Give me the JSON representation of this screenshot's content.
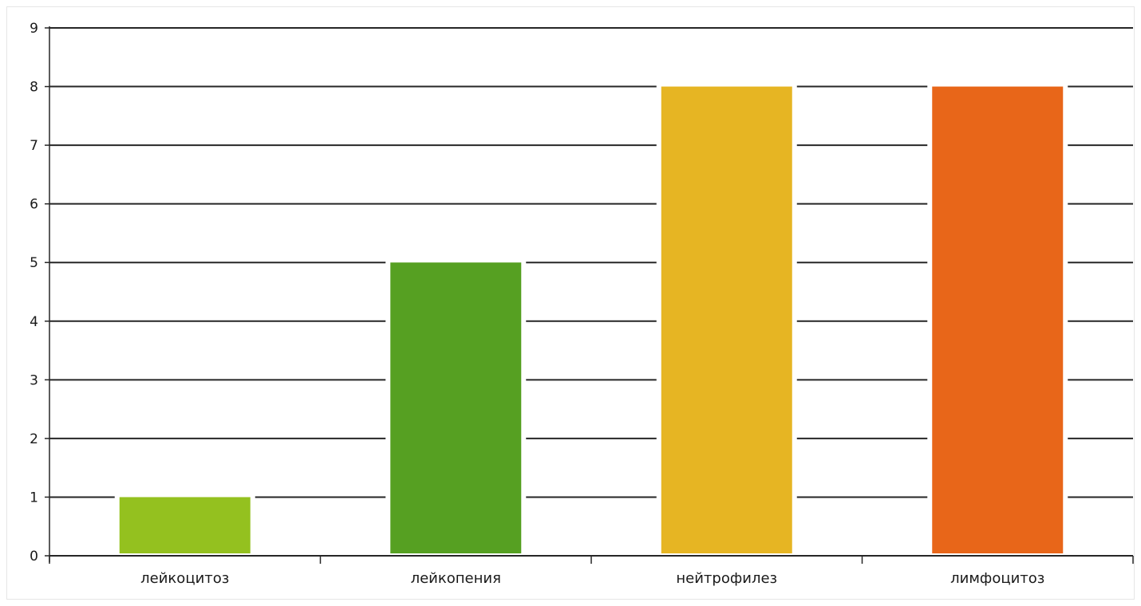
{
  "chart_data": {
    "type": "bar",
    "categories": [
      "лейкоцитоз",
      "лейкопения",
      "нейтрофилез",
      "лимфоцитоз"
    ],
    "values": [
      1,
      5,
      8,
      8
    ],
    "colors": [
      "#94c11f",
      "#56a022",
      "#e6b523",
      "#e86619"
    ],
    "ylim": [
      0,
      9
    ],
    "yticks": [
      "0",
      "1",
      "2",
      "3",
      "4",
      "5",
      "6",
      "7",
      "8",
      "9"
    ],
    "grid": true,
    "legend": "none"
  }
}
